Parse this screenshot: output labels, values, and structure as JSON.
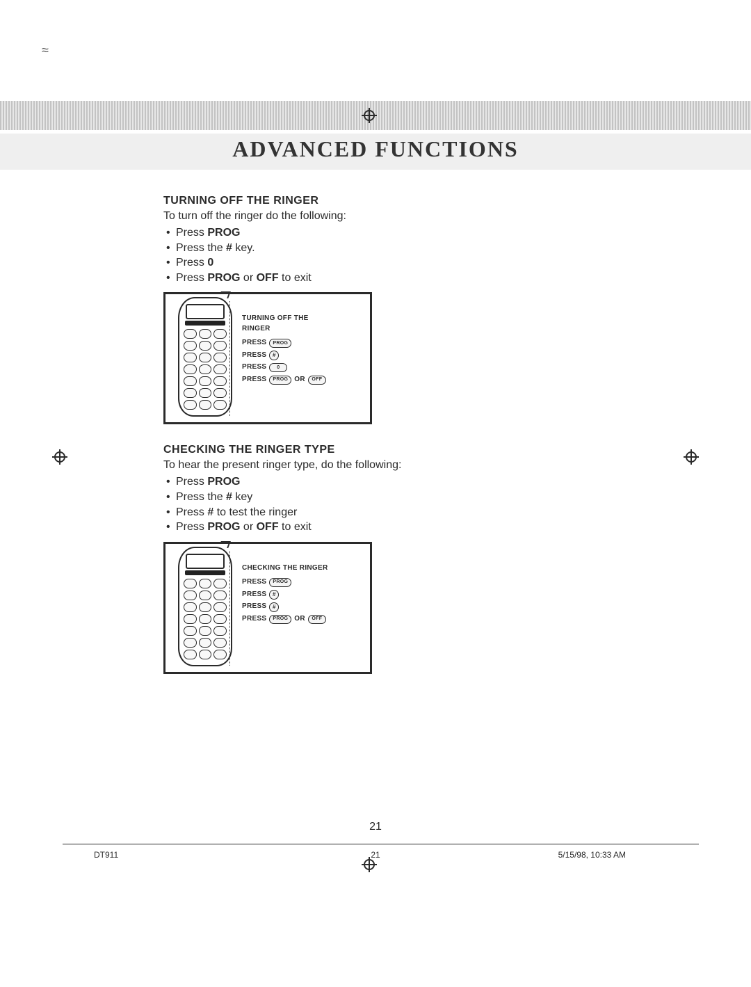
{
  "banner": {
    "title": "ADVANCED FUNCTIONS"
  },
  "section1": {
    "heading": "TURNING OFF THE RINGER",
    "intro": "To turn off the ringer do the following:",
    "steps": [
      {
        "pre": "Press  ",
        "b1": "PROG"
      },
      {
        "pre": "Press the  ",
        "b1": "#",
        "post": "  key."
      },
      {
        "pre": "Press   ",
        "b1": "0"
      },
      {
        "pre": "Press  ",
        "b1": "PROG",
        "mid": "  or  ",
        "b2": "OFF",
        "post": "  to exit"
      }
    ],
    "illus": {
      "title1": "TURNING OFF THE",
      "title2": "RINGER",
      "rows": [
        {
          "label": "PRESS",
          "btn1": "PROG",
          "shape1": "pill"
        },
        {
          "label": "PRESS",
          "btn1": "#",
          "shape1": "round"
        },
        {
          "label": "PRESS",
          "btn1": "0",
          "shape1": "pill",
          "prefix": "0"
        },
        {
          "label": "PRESS",
          "btn1": "PROG",
          "shape1": "pill",
          "mid": "OR",
          "btn2": "OFF",
          "shape2": "pill"
        }
      ]
    }
  },
  "section2": {
    "heading": "CHECKING THE RINGER TYPE",
    "intro": "To hear the present ringer type, do the following:",
    "steps": [
      {
        "pre": "Press  ",
        "b1": "PROG"
      },
      {
        "pre": "Press the   ",
        "b1": "#",
        "post": "  key"
      },
      {
        "pre": "Press  ",
        "b1": "#",
        "post": "  to test the ringer"
      },
      {
        "pre": "Press  ",
        "b1": "PROG",
        "mid": "  or  ",
        "b2": "OFF",
        "post": "  to exit"
      }
    ],
    "illus": {
      "title1": "CHECKING THE RINGER",
      "rows": [
        {
          "label": "PRESS",
          "btn1": "PROG",
          "shape1": "pill"
        },
        {
          "label": "PRESS",
          "btn1": "#",
          "shape1": "round"
        },
        {
          "label": "PRESS",
          "btn1": "#",
          "shape1": "round"
        },
        {
          "label": "PRESS",
          "btn1": "PROG",
          "shape1": "pill",
          "mid": "OR",
          "btn2": "OFF",
          "shape2": "pill"
        }
      ]
    }
  },
  "footer": {
    "page_main": "21",
    "doc_id": "DT911",
    "page_small": "21",
    "datetime": "5/15/98, 10:33 AM"
  }
}
